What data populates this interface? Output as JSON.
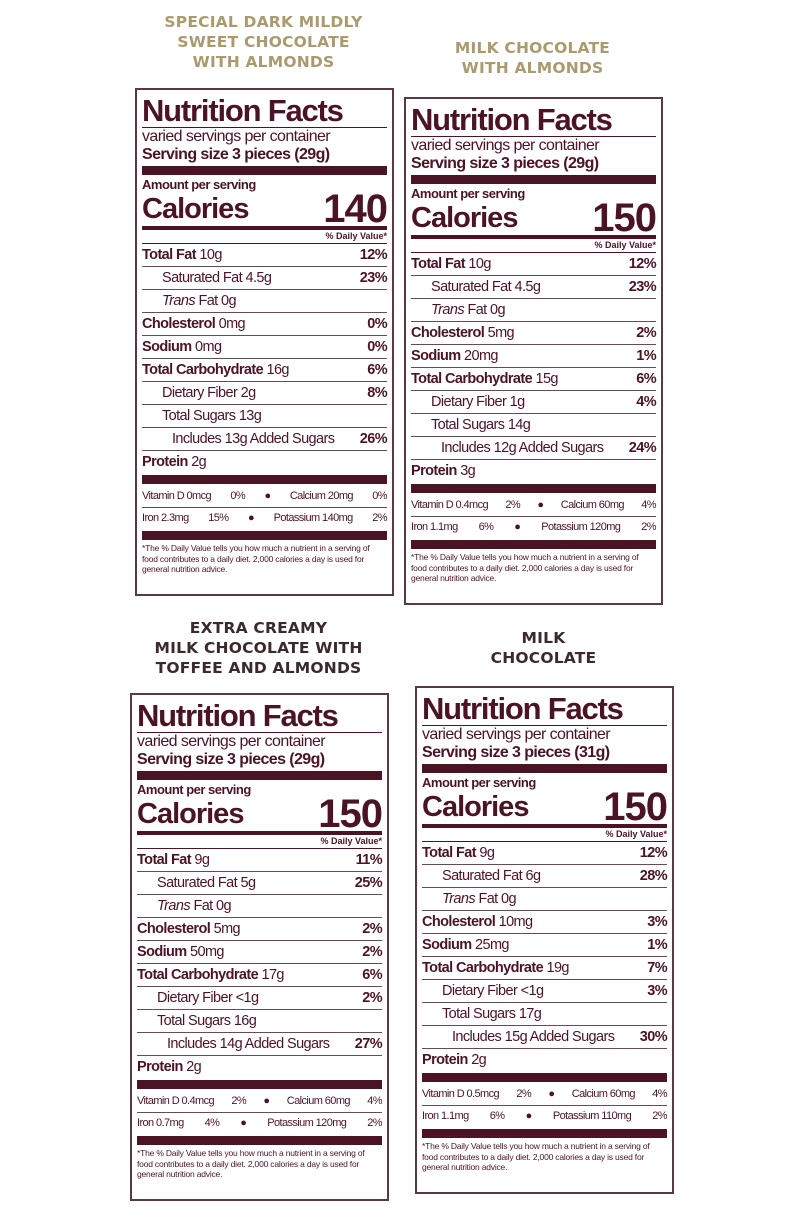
{
  "colors": {
    "label_ink": "#4a1424",
    "heading_gold": "#a99b6f",
    "heading_dark": "#3b2a2c"
  },
  "panels": [
    {
      "heading": [
        "SPECIAL DARK MILDLY",
        "SWEET CHOCOLATE",
        "WITH ALMONDS"
      ],
      "title": "Nutrition Facts",
      "servings": "varied servings per container",
      "serving_size_label": "Serving size",
      "serving_size": "3 pieces (29g)",
      "amount_label": "Amount per serving",
      "calories_label": "Calories",
      "calories": "140",
      "dv_header": "% Daily Value*",
      "rows": [
        {
          "label": "Total Fat",
          "amount": "10g",
          "dv": "12%",
          "bold": true,
          "indent": 0
        },
        {
          "label": "Saturated Fat",
          "amount": "4.5g",
          "dv": "23%",
          "bold": false,
          "indent": 1
        },
        {
          "label": "Trans",
          "amount": "Fat 0g",
          "dv": "",
          "bold": false,
          "indent": 1,
          "italic": true
        },
        {
          "label": "Cholesterol",
          "amount": "0mg",
          "dv": "0%",
          "bold": true,
          "indent": 0
        },
        {
          "label": "Sodium",
          "amount": "0mg",
          "dv": "0%",
          "bold": true,
          "indent": 0
        },
        {
          "label": "Total Carbohydrate",
          "amount": "16g",
          "dv": "6%",
          "bold": true,
          "indent": 0
        },
        {
          "label": "Dietary Fiber",
          "amount": "2g",
          "dv": "8%",
          "bold": false,
          "indent": 1
        },
        {
          "label": "Total Sugars",
          "amount": "13g",
          "dv": "",
          "bold": false,
          "indent": 1
        },
        {
          "label": "Includes 13g Added Sugars",
          "amount": "",
          "dv": "26%",
          "bold": false,
          "indent": 2
        },
        {
          "label": "Protein",
          "amount": "2g",
          "dv": "",
          "bold": true,
          "indent": 0
        }
      ],
      "vitamins": [
        {
          "a": "Vitamin D 0mcg",
          "a_dv": "0%",
          "b": "Calcium 20mg",
          "b_dv": "0%"
        },
        {
          "a": "Iron 2.3mg",
          "a_dv": "15%",
          "b": "Potassium 140mg",
          "b_dv": "2%"
        }
      ],
      "footnote": "*The % Daily Value tells you how much a nutrient in a serving of food contributes to a daily diet. 2,000 calories a day is used for general nutrition advice."
    },
    {
      "heading": [
        "MILK CHOCOLATE",
        "WITH ALMONDS"
      ],
      "title": "Nutrition Facts",
      "servings": "varied servings per container",
      "serving_size_label": "Serving size",
      "serving_size": "3 pieces (29g)",
      "amount_label": "Amount per serving",
      "calories_label": "Calories",
      "calories": "150",
      "dv_header": "% Daily Value*",
      "rows": [
        {
          "label": "Total Fat",
          "amount": "10g",
          "dv": "12%",
          "bold": true,
          "indent": 0
        },
        {
          "label": "Saturated Fat",
          "amount": "4.5g",
          "dv": "23%",
          "bold": false,
          "indent": 1
        },
        {
          "label": "Trans",
          "amount": "Fat 0g",
          "dv": "",
          "bold": false,
          "indent": 1,
          "italic": true
        },
        {
          "label": "Cholesterol",
          "amount": "5mg",
          "dv": "2%",
          "bold": true,
          "indent": 0
        },
        {
          "label": "Sodium",
          "amount": "20mg",
          "dv": "1%",
          "bold": true,
          "indent": 0
        },
        {
          "label": "Total Carbohydrate",
          "amount": "15g",
          "dv": "6%",
          "bold": true,
          "indent": 0
        },
        {
          "label": "Dietary Fiber",
          "amount": "1g",
          "dv": "4%",
          "bold": false,
          "indent": 1
        },
        {
          "label": "Total Sugars",
          "amount": "14g",
          "dv": "",
          "bold": false,
          "indent": 1
        },
        {
          "label": "Includes 12g Added Sugars",
          "amount": "",
          "dv": "24%",
          "bold": false,
          "indent": 2
        },
        {
          "label": "Protein",
          "amount": "3g",
          "dv": "",
          "bold": true,
          "indent": 0
        }
      ],
      "vitamins": [
        {
          "a": "Vitamin D 0.4mcg",
          "a_dv": "2%",
          "b": "Calcium 60mg",
          "b_dv": "4%"
        },
        {
          "a": "Iron 1.1mg",
          "a_dv": "6%",
          "b": "Potassium 120mg",
          "b_dv": "2%"
        }
      ],
      "footnote": "*The % Daily Value tells you how much a nutrient in a serving of food contributes to a daily diet. 2,000 calories a day is used for general nutrition advice."
    },
    {
      "heading": [
        "EXTRA CREAMY",
        "MILK CHOCOLATE WITH",
        "TOFFEE AND ALMONDS"
      ],
      "title": "Nutrition Facts",
      "servings": "varied servings per container",
      "serving_size_label": "Serving size",
      "serving_size": "3 pieces (29g)",
      "amount_label": "Amount per serving",
      "calories_label": "Calories",
      "calories": "150",
      "dv_header": "% Daily Value*",
      "rows": [
        {
          "label": "Total Fat",
          "amount": "9g",
          "dv": "11%",
          "bold": true,
          "indent": 0
        },
        {
          "label": "Saturated Fat",
          "amount": "5g",
          "dv": "25%",
          "bold": false,
          "indent": 1
        },
        {
          "label": "Trans",
          "amount": "Fat 0g",
          "dv": "",
          "bold": false,
          "indent": 1,
          "italic": true
        },
        {
          "label": "Cholesterol",
          "amount": "5mg",
          "dv": "2%",
          "bold": true,
          "indent": 0
        },
        {
          "label": "Sodium",
          "amount": "50mg",
          "dv": "2%",
          "bold": true,
          "indent": 0
        },
        {
          "label": "Total Carbohydrate",
          "amount": "17g",
          "dv": "6%",
          "bold": true,
          "indent": 0
        },
        {
          "label": "Dietary Fiber",
          "amount": "<1g",
          "dv": "2%",
          "bold": false,
          "indent": 1
        },
        {
          "label": "Total Sugars",
          "amount": "16g",
          "dv": "",
          "bold": false,
          "indent": 1
        },
        {
          "label": "Includes 14g Added Sugars",
          "amount": "",
          "dv": "27%",
          "bold": false,
          "indent": 2
        },
        {
          "label": "Protein",
          "amount": "2g",
          "dv": "",
          "bold": true,
          "indent": 0
        }
      ],
      "vitamins": [
        {
          "a": "Vitamin D 0.4mcg",
          "a_dv": "2%",
          "b": "Calcium 60mg",
          "b_dv": "4%"
        },
        {
          "a": "Iron 0.7mg",
          "a_dv": "4%",
          "b": "Potassium 120mg",
          "b_dv": "2%"
        }
      ],
      "footnote": "*The % Daily Value tells you how much a nutrient in a serving of food contributes to a daily diet. 2,000 calories a day is used for general nutrition advice."
    },
    {
      "heading": [
        "MILK",
        "CHOCOLATE"
      ],
      "title": "Nutrition Facts",
      "servings": "varied servings per container",
      "serving_size_label": "Serving size",
      "serving_size": "3 pieces (31g)",
      "amount_label": "Amount per serving",
      "calories_label": "Calories",
      "calories": "150",
      "dv_header": "% Daily Value*",
      "rows": [
        {
          "label": "Total Fat",
          "amount": "9g",
          "dv": "12%",
          "bold": true,
          "indent": 0
        },
        {
          "label": "Saturated Fat",
          "amount": "6g",
          "dv": "28%",
          "bold": false,
          "indent": 1
        },
        {
          "label": "Trans",
          "amount": "Fat 0g",
          "dv": "",
          "bold": false,
          "indent": 1,
          "italic": true
        },
        {
          "label": "Cholesterol",
          "amount": "10mg",
          "dv": "3%",
          "bold": true,
          "indent": 0
        },
        {
          "label": "Sodium",
          "amount": "25mg",
          "dv": "1%",
          "bold": true,
          "indent": 0
        },
        {
          "label": "Total Carbohydrate",
          "amount": "19g",
          "dv": "7%",
          "bold": true,
          "indent": 0
        },
        {
          "label": "Dietary Fiber",
          "amount": "<1g",
          "dv": "3%",
          "bold": false,
          "indent": 1
        },
        {
          "label": "Total Sugars",
          "amount": "17g",
          "dv": "",
          "bold": false,
          "indent": 1
        },
        {
          "label": "Includes 15g Added Sugars",
          "amount": "",
          "dv": "30%",
          "bold": false,
          "indent": 2
        },
        {
          "label": "Protein",
          "amount": "2g",
          "dv": "",
          "bold": true,
          "indent": 0
        }
      ],
      "vitamins": [
        {
          "a": "Vitamin D 0.5mcg",
          "a_dv": "2%",
          "b": "Calcium 60mg",
          "b_dv": "4%"
        },
        {
          "a": "Iron 1.1mg",
          "a_dv": "6%",
          "b": "Potassium 110mg",
          "b_dv": "2%"
        }
      ],
      "footnote": "*The % Daily Value tells you how much a nutrient in a serving of food contributes to a daily diet. 2,000 calories a day is used for general nutrition advice."
    }
  ]
}
